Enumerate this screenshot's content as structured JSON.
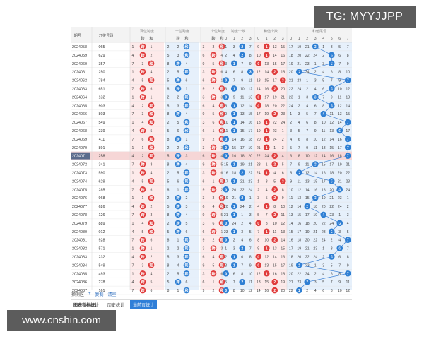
{
  "banners": {
    "tg": "TG: MYYJJPP",
    "web": "www.cnshin.com"
  },
  "header": {
    "issue": "期号",
    "prize": "开奖号码",
    "groups": [
      "百位跨度",
      "十位跨度",
      "个位跨度",
      "跨度个数",
      "和值个数",
      "和值尾号"
    ],
    "pair": [
      "跨",
      "和"
    ],
    "digits": [
      "0",
      "1",
      "2",
      "3",
      "0",
      "1",
      "2",
      "3",
      "0",
      "1",
      "2",
      "3",
      "4",
      "5",
      "6",
      "7"
    ]
  },
  "rows": [
    {
      "issue": "2024058",
      "prize": "065"
    },
    {
      "issue": "2024059",
      "prize": "629"
    },
    {
      "issue": "2024060",
      "prize": "357"
    },
    {
      "issue": "2024061",
      "prize": "250"
    },
    {
      "issue": "2024062",
      "prize": "784"
    },
    {
      "issue": "2024063",
      "prize": "651"
    },
    {
      "issue": "2024064",
      "prize": "132"
    },
    {
      "issue": "2024065",
      "prize": "903"
    },
    {
      "issue": "2024066",
      "prize": "803"
    },
    {
      "issue": "2024067",
      "prize": "549"
    },
    {
      "issue": "2024068",
      "prize": "239"
    },
    {
      "issue": "2024069",
      "prize": "411"
    },
    {
      "issue": "2024070",
      "prize": "891"
    },
    {
      "issue": "2024071",
      "prize": "258"
    },
    {
      "issue": "2024072",
      "prize": "341"
    },
    {
      "issue": "2024073",
      "prize": "590"
    },
    {
      "issue": "2024074",
      "prize": "629"
    },
    {
      "issue": "2024075",
      "prize": "285"
    },
    {
      "issue": "2024076",
      "prize": "968"
    },
    {
      "issue": "2024077",
      "prize": "626"
    },
    {
      "issue": "2024078",
      "prize": "126"
    },
    {
      "issue": "2024079",
      "prize": "889"
    },
    {
      "issue": "2024080",
      "prize": "012"
    },
    {
      "issue": "2024081",
      "prize": "928"
    },
    {
      "issue": "2024082",
      "prize": "571"
    },
    {
      "issue": "2024083",
      "prize": "232"
    },
    {
      "issue": "2024084",
      "prize": "549"
    },
    {
      "issue": "2024085",
      "prize": "493"
    },
    {
      "issue": "2024086",
      "prize": "278"
    },
    {
      "issue": "2024087",
      "prize": "161"
    }
  ],
  "selected_issue": "2024071",
  "balls": {
    "pairA": [
      "跨",
      "跨",
      "和",
      "跨",
      "和",
      "跨",
      "跨",
      "和",
      "和",
      "和",
      "跨",
      "和",
      "和",
      "和",
      "跨",
      "跨",
      "和",
      "跨",
      "和",
      "跨",
      "跨",
      "和",
      "和",
      "跨",
      "跨",
      "跨",
      "和",
      "跨",
      "跨",
      "跨"
    ],
    "pairB": [
      "和",
      "和",
      "跨",
      "和",
      "跨",
      "跨",
      "和",
      "和",
      "跨",
      "和",
      "和",
      "跨",
      "和",
      "跨",
      "跨",
      "和",
      "和",
      "和",
      "跨",
      "跨",
      "跨",
      "跨",
      "跨",
      "和",
      "和",
      "和",
      "和",
      "和",
      "跨",
      "和"
    ],
    "pairC": [
      "和",
      "跨",
      "和",
      "跨",
      "跨",
      "和",
      "跨",
      "和",
      "和",
      "和",
      "和",
      "和",
      "跨",
      "跨",
      "跨",
      "跨",
      "和",
      "跨",
      "和",
      "和",
      "跨",
      "和",
      "跨",
      "和",
      "跨",
      "和",
      "和",
      "跨",
      "和",
      "和"
    ],
    "grpA": [
      2,
      2,
      1,
      3,
      0,
      1,
      0,
      1,
      1,
      1,
      1,
      0,
      0,
      0,
      1,
      2,
      1,
      0,
      2,
      1,
      1,
      0,
      1,
      0,
      2,
      1,
      1,
      0,
      2,
      0
    ],
    "grpB": [
      1,
      1,
      0,
      2,
      3,
      2,
      0,
      0,
      2,
      1,
      1,
      1,
      1,
      2,
      2,
      1,
      3,
      2,
      2,
      1,
      2,
      0,
      1,
      2,
      1,
      0,
      0,
      1,
      2,
      2
    ],
    "trail": [
      3,
      5,
      5,
      1,
      7,
      5,
      3,
      5,
      4,
      7,
      6,
      7,
      7,
      7,
      3,
      1,
      5,
      6,
      3,
      2,
      4,
      6,
      5,
      7,
      6,
      5,
      1,
      7,
      2,
      1
    ]
  },
  "miss_values": [
    "1",
    "2",
    "3",
    "4",
    "5",
    "6",
    "7",
    "8",
    "9",
    "10",
    "11",
    "12",
    "13",
    "14",
    "15",
    "16",
    "17",
    "18",
    "19",
    "20",
    "21",
    "22",
    "23",
    "24"
  ],
  "footer": {
    "tools": [
      "预测区",
      "+",
      "复制",
      "清空"
    ],
    "tabs": [
      "图表指标统计",
      "历史统计",
      "当前页统计"
    ]
  },
  "colors": {
    "red": "#e03c3c",
    "blue": "#2e7fd3",
    "selected_row": "#f6d6d6",
    "band_red": "#fdeaea",
    "band_blue": "#e6f0fb"
  }
}
